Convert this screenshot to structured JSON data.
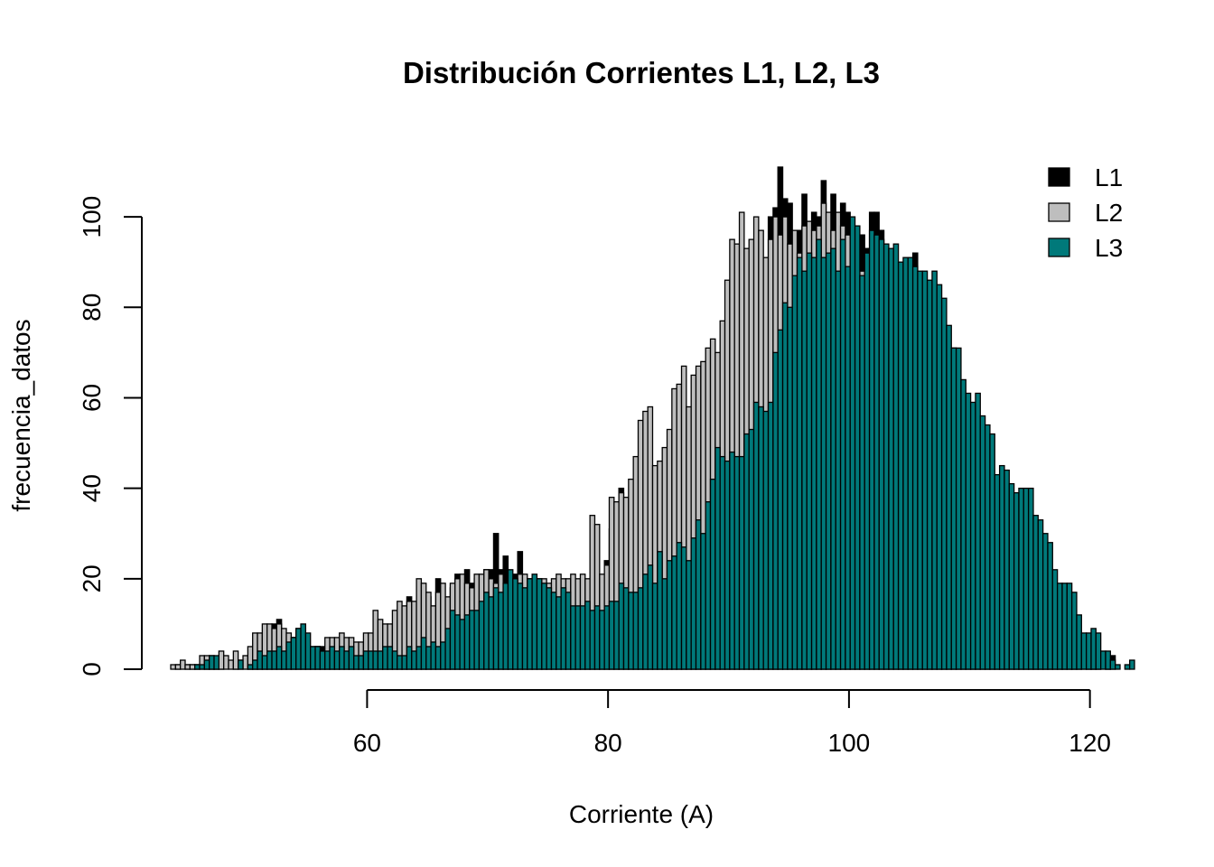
{
  "chart_data": {
    "type": "bar",
    "title": "Distribución Corrientes L1, L2, L3",
    "xlabel": "Corriente (A)",
    "ylabel": "frecuencia_datos",
    "xlim": [
      43.7,
      124.3
    ],
    "ylim": [
      0,
      111
    ],
    "x_ticks": [
      60,
      80,
      100,
      120
    ],
    "y_ticks": [
      0,
      20,
      40,
      60,
      80,
      100
    ],
    "bin_start": 43.7,
    "bin_width": 0.4,
    "legend_position": "top-right",
    "series": [
      {
        "name": "L1",
        "color": "#000000",
        "values": [
          0,
          1,
          0,
          1,
          1,
          1,
          0,
          2,
          2,
          2,
          2,
          0,
          0,
          1,
          0,
          0,
          2,
          4,
          5,
          6,
          8,
          10,
          11,
          8,
          6,
          7,
          9,
          8,
          5,
          4,
          5,
          5,
          5,
          3,
          4,
          6,
          5,
          5,
          5,
          4,
          5,
          6,
          6,
          5,
          7,
          8,
          10,
          12,
          12,
          16,
          14,
          14,
          14,
          16,
          13,
          20,
          15,
          15,
          18,
          21,
          20,
          22,
          19,
          20,
          19,
          22,
          22,
          30,
          22,
          25,
          20,
          21,
          26,
          20,
          18,
          17,
          20,
          17,
          14,
          16,
          15,
          15,
          14,
          17,
          16,
          17,
          16,
          17,
          19,
          20,
          24,
          31,
          25,
          40,
          23,
          30,
          28,
          31,
          34,
          35,
          32,
          40,
          36,
          36,
          40,
          40,
          45,
          50,
          44,
          46,
          51,
          46,
          58,
          63,
          54,
          67,
          64,
          65,
          66,
          73,
          66,
          75,
          74,
          84,
          100,
          102,
          111,
          104,
          103,
          95,
          97,
          105,
          97,
          101,
          100,
          108,
          95,
          105,
          90,
          103,
          101,
          82,
          93,
          96,
          93,
          101,
          101,
          97,
          88,
          93,
          84,
          89,
          89,
          85,
          92,
          83,
          78,
          72,
          72,
          76,
          70,
          71,
          71,
          55,
          51,
          49,
          51,
          49,
          46,
          44,
          42,
          39,
          38,
          32,
          36,
          25,
          28,
          28,
          16,
          13,
          14,
          11,
          14,
          14,
          7,
          6,
          3,
          1,
          3,
          0,
          1,
          4,
          2,
          0,
          1,
          3
        ]
      },
      {
        "name": "L2",
        "color": "#bebebe",
        "values": [
          1,
          1,
          2,
          1,
          1,
          1,
          3,
          3,
          3,
          2,
          4,
          3,
          2,
          4,
          2,
          3,
          5,
          8,
          8,
          10,
          10,
          9,
          10,
          9,
          8,
          7,
          8,
          9,
          5,
          5,
          5,
          4,
          7,
          7,
          7,
          8,
          7,
          7,
          6,
          6,
          8,
          8,
          13,
          11,
          10,
          10,
          13,
          15,
          14,
          15,
          15,
          20,
          19,
          17,
          14,
          17,
          19,
          16,
          19,
          20,
          21,
          19,
          18,
          21,
          21,
          22,
          20,
          19,
          21,
          19,
          20,
          20,
          21,
          21,
          20,
          20,
          19,
          20,
          19,
          20,
          21,
          20,
          20,
          21,
          20,
          21,
          20,
          34,
          32,
          21,
          23,
          38,
          37,
          39,
          38,
          42,
          47,
          55,
          57,
          58,
          45,
          46,
          49,
          53,
          62,
          63,
          67,
          58,
          65,
          67,
          68,
          71,
          73,
          70,
          77,
          86,
          95,
          94,
          101,
          93,
          95,
          100,
          97,
          91,
          95,
          100,
          96,
          100,
          94,
          97,
          92,
          98,
          99,
          97,
          98,
          103,
          101,
          97,
          101,
          98,
          96,
          93,
          90,
          88,
          86,
          86,
          91,
          88,
          87,
          91,
          83,
          79,
          70,
          72,
          74,
          69,
          70,
          69,
          71,
          71,
          63,
          56,
          53,
          52,
          47,
          46,
          43,
          35,
          32,
          32,
          31,
          30,
          32,
          30,
          29,
          22,
          20,
          19,
          14,
          15,
          13,
          11,
          12,
          10,
          7,
          6,
          4,
          3,
          2,
          1,
          2,
          2,
          1,
          0,
          2
        ]
      },
      {
        "name": "L3",
        "color": "#00797a",
        "values": [
          0,
          0,
          0,
          0,
          0,
          1,
          1,
          2,
          3,
          3,
          0,
          0,
          0,
          0,
          2,
          0,
          1,
          2,
          4,
          3,
          4,
          4,
          5,
          4,
          6,
          7,
          9,
          10,
          8,
          5,
          5,
          4,
          4,
          5,
          4,
          5,
          4,
          5,
          3,
          3,
          4,
          4,
          4,
          4,
          5,
          5,
          4,
          3,
          3,
          5,
          4,
          5,
          7,
          5,
          6,
          5,
          6,
          9,
          13,
          12,
          11,
          12,
          13,
          13,
          15,
          17,
          16,
          18,
          17,
          19,
          22,
          20,
          19,
          18,
          20,
          21,
          20,
          19,
          18,
          17,
          16,
          18,
          17,
          14,
          14,
          14,
          15,
          13,
          14,
          13,
          14,
          15,
          15,
          19,
          18,
          17,
          17,
          18,
          21,
          23,
          19,
          26,
          20,
          24,
          25,
          28,
          27,
          24,
          29,
          33,
          30,
          37,
          42,
          49,
          47,
          46,
          48,
          47,
          47,
          52,
          53,
          59,
          58,
          57,
          59,
          70,
          75,
          81,
          80,
          87,
          91,
          88,
          92,
          91,
          95,
          91,
          92,
          93,
          88,
          95,
          89,
          100,
          98,
          87,
          92,
          97,
          96,
          95,
          94,
          93,
          94,
          90,
          91,
          91,
          89,
          88,
          88,
          86,
          88,
          85,
          82,
          76,
          71,
          71,
          64,
          61,
          59,
          61,
          56,
          54,
          52,
          43,
          45,
          44,
          41,
          39,
          40,
          40,
          40,
          34,
          33,
          30,
          28,
          22,
          19,
          19,
          19,
          17,
          12,
          8,
          8,
          9,
          8,
          4,
          4,
          2,
          1,
          0,
          1,
          2
        ]
      }
    ]
  }
}
